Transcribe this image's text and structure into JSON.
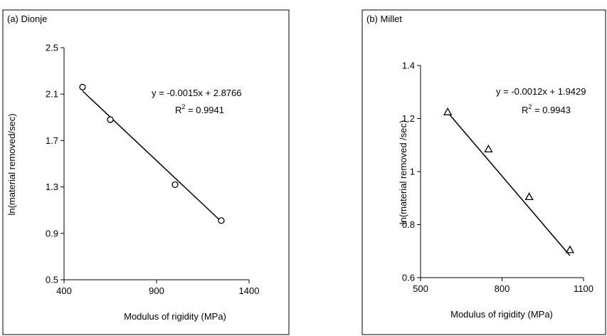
{
  "chart_data": [
    {
      "type": "scatter",
      "panel_label": "(a) Dionje",
      "xlabel": "Modulus of rigidity (MPa)",
      "ylabel": "ln(material removed/sec)",
      "xlim": [
        400,
        1400
      ],
      "ylim": [
        0.5,
        2.5
      ],
      "xticks": [
        400,
        900,
        1400
      ],
      "xtick_labels": [
        "400",
        "900",
        "1400"
      ],
      "yticks": [
        0.5,
        0.9,
        1.3,
        1.7,
        2.1,
        2.5
      ],
      "ytick_labels": [
        "0.5",
        "0.9",
        "1.3",
        "1.7",
        "2.1",
        "2.5"
      ],
      "marker": "circle",
      "points": [
        {
          "x": 500,
          "y": 2.16
        },
        {
          "x": 650,
          "y": 1.88
        },
        {
          "x": 1000,
          "y": 1.32
        },
        {
          "x": 1250,
          "y": 1.01
        }
      ],
      "trendline": {
        "slope": -0.0015,
        "intercept": 2.8766,
        "x_start": 500,
        "x_end": 1250
      },
      "equation_text": "y = -0.0015x + 2.8766",
      "r2_prefix": "R",
      "r2_sup": "2",
      "r2_value": " = 0.9941",
      "grid": false
    },
    {
      "type": "scatter",
      "panel_label": "(b) Millet",
      "xlabel": "Modulus of rigidity (MPa)",
      "ylabel": "ln(material removed /sec)",
      "xlim": [
        500,
        1100
      ],
      "ylim": [
        0.6,
        1.4
      ],
      "xticks": [
        500,
        800,
        1100
      ],
      "xtick_labels": [
        "500",
        "800",
        "1100"
      ],
      "yticks": [
        0.6,
        0.8,
        1.0,
        1.2,
        1.4
      ],
      "ytick_labels": [
        "0.6",
        "0.8",
        "1",
        "1.2",
        "1.4"
      ],
      "marker": "triangle",
      "points": [
        {
          "x": 600,
          "y": 1.225
        },
        {
          "x": 750,
          "y": 1.085
        },
        {
          "x": 900,
          "y": 0.905
        },
        {
          "x": 1050,
          "y": 0.705
        }
      ],
      "trendline": {
        "slope": -0.0012,
        "intercept": 1.9429,
        "x_start": 600,
        "x_end": 1050
      },
      "equation_text": "y = -0.0012x + 1.9429",
      "r2_prefix": "R",
      "r2_sup": "2",
      "r2_value": " = 0.9943",
      "grid": false
    }
  ]
}
